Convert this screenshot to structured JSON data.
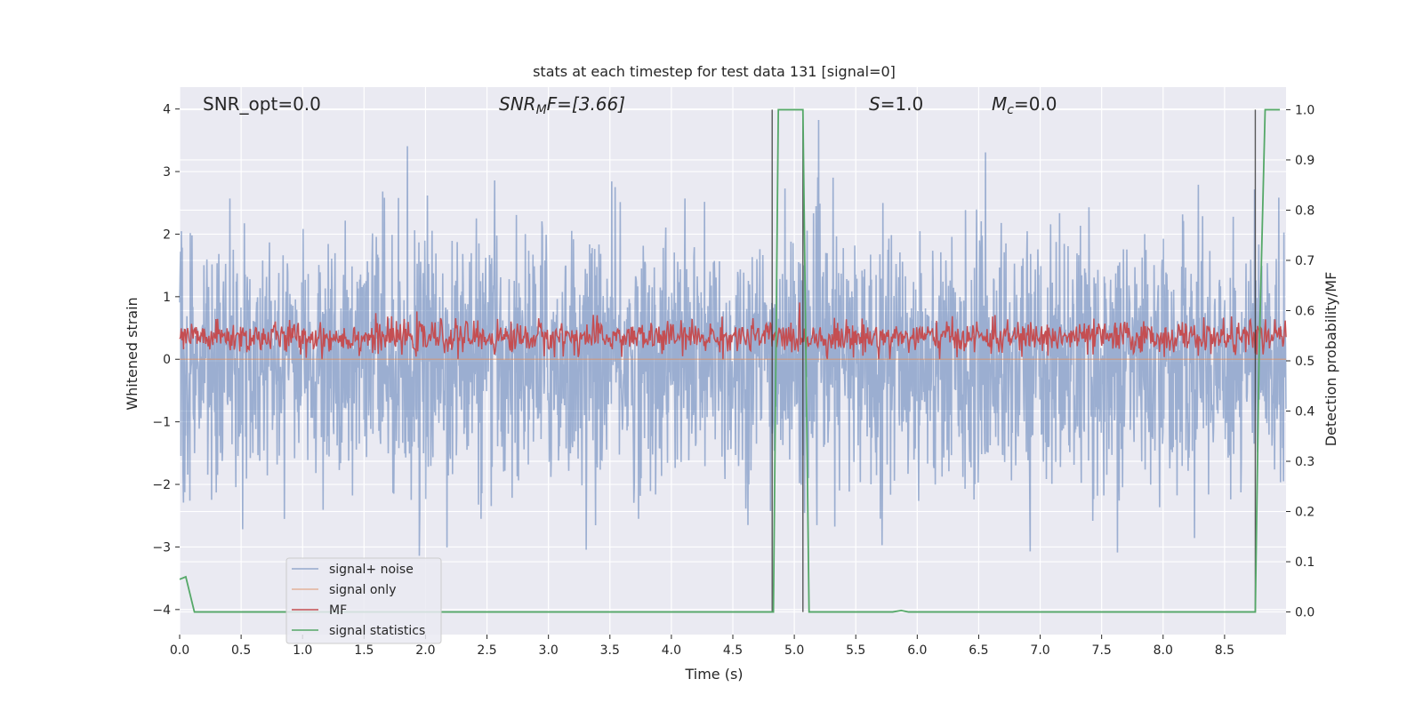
{
  "chart_data": {
    "type": "line",
    "title": "stats at each timestep for test data 131 [signal=0]",
    "xlabel": "Time (s)",
    "ylabel": "Whitened strain",
    "y2label": "Detection probability/MF",
    "xlim": [
      0,
      9.0
    ],
    "ylim": [
      -4.4,
      4.35
    ],
    "y2lim": [
      -0.045,
      1.045
    ],
    "x_ticks": [
      0.0,
      0.5,
      1.0,
      1.5,
      2.0,
      2.5,
      3.0,
      3.5,
      4.0,
      4.5,
      5.0,
      5.5,
      6.0,
      6.5,
      7.0,
      7.5,
      8.0,
      8.5
    ],
    "x_tick_labels": [
      "0.0",
      "0.5",
      "1.0",
      "1.5",
      "2.0",
      "2.5",
      "3.0",
      "3.5",
      "4.0",
      "4.5",
      "5.0",
      "5.5",
      "6.0",
      "6.5",
      "7.0",
      "7.5",
      "8.0",
      "8.5"
    ],
    "y_ticks": [
      -4,
      -3,
      -2,
      -1,
      0,
      1,
      2,
      3,
      4
    ],
    "y_tick_labels": [
      "−4",
      "−3",
      "−2",
      "−1",
      "0",
      "1",
      "2",
      "3",
      "4"
    ],
    "y2_ticks": [
      0.0,
      0.1,
      0.2,
      0.3,
      0.4,
      0.5,
      0.6,
      0.7,
      0.8,
      0.9,
      1.0
    ],
    "y2_tick_labels": [
      "0.0",
      "0.1",
      "0.2",
      "0.3",
      "0.4",
      "0.5",
      "0.6",
      "0.7",
      "0.8",
      "0.9",
      "1.0"
    ],
    "grid": true,
    "legend_position": "lower-left",
    "annotations": {
      "snr_opt": "SNR_opt=0.0",
      "snr_mf_main": "SNR",
      "snr_mf_sub": "M",
      "snr_mf_rest": "F=[3.66]",
      "s_main": "S",
      "s_rest": "=1.0",
      "mc_main": "M",
      "mc_sub": "c",
      "mc_rest": "=0.0"
    },
    "series": [
      {
        "name": "signal+ noise",
        "color": "#4c72b0",
        "description_range": [
          -3.8,
          3.95
        ],
        "typical_std": 1.0
      },
      {
        "name": "signal only",
        "color": "#dd8452",
        "values_constant": 0.0
      },
      {
        "name": "MF",
        "color": "#c44e52",
        "typical_range": [
          0.0,
          0.95
        ],
        "mean": 0.35
      },
      {
        "name": "signal statistics",
        "color": "#55a868",
        "axis": "right",
        "x": [
          0.0,
          0.05,
          0.12,
          4.8,
          4.83,
          4.87,
          5.05,
          5.07,
          5.12,
          5.8,
          5.87,
          5.93,
          8.75,
          8.78,
          8.83,
          8.95
        ],
        "values": [
          0.065,
          0.07,
          0.0,
          0.0,
          0.0,
          1.0,
          1.0,
          1.0,
          0.0,
          0.0,
          0.003,
          0.0,
          0.0,
          0.5,
          1.0,
          1.0
        ]
      }
    ],
    "vertical_markers": [
      {
        "x": 4.82,
        "y_from": 0.0,
        "y_to": 1.0
      },
      {
        "x": 5.07,
        "y_from": 0.0,
        "y_to": 1.0
      },
      {
        "x": 8.75,
        "y_from": 0.0,
        "y_to": 1.0
      }
    ]
  }
}
